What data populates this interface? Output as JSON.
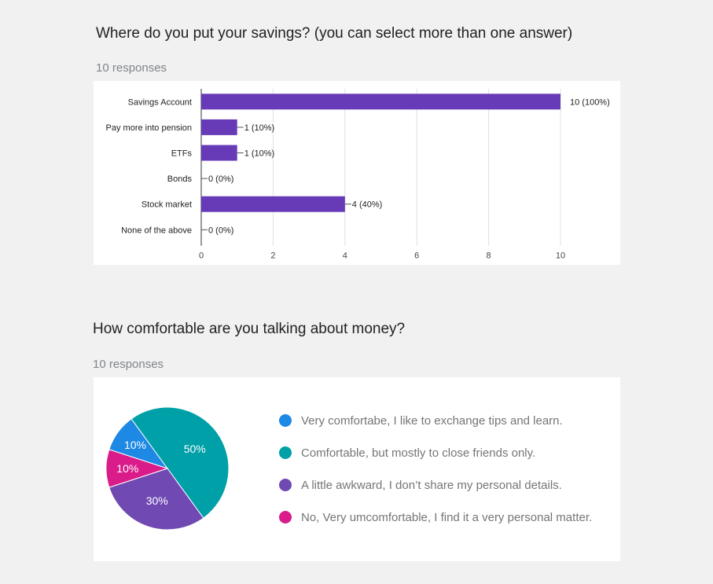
{
  "questions": [
    {
      "title": "Where do you put your savings? (you can select more than one answer)",
      "responses": "10 responses"
    },
    {
      "title": "How comfortable are you talking about money?",
      "responses": "10 responses"
    }
  ],
  "chart_data": [
    {
      "type": "bar",
      "orientation": "horizontal",
      "categories": [
        "Savings Account",
        "Pay more into pension",
        "ETFs",
        "Bonds",
        "Stock market",
        "None of the above"
      ],
      "values": [
        10,
        1,
        1,
        0,
        4,
        0
      ],
      "data_labels": [
        "10 (100%)",
        "1 (10%)",
        "1 (10%)",
        "0 (0%)",
        "4 (40%)",
        "0 (0%)"
      ],
      "xlim": [
        0,
        10
      ],
      "x_ticks": [
        "0",
        "2",
        "4",
        "6",
        "8",
        "10"
      ],
      "grid": true,
      "color": "#673ab7"
    },
    {
      "type": "pie",
      "labels": [
        "Very comfortabe, I like to exchange tips and learn.",
        "Comfortable, but mostly to close friends only.",
        "A little awkward, I don’t share my personal details.",
        "No, Very umcomfortable, I find it a very personal matter."
      ],
      "values": [
        10,
        50,
        30,
        10
      ],
      "slice_labels": [
        "10%",
        "50%",
        "30%",
        "10%"
      ],
      "colors": [
        "#1e88e5",
        "#00a0a8",
        "#7049b3",
        "#d91c8a"
      ],
      "legend_position": "right"
    }
  ]
}
